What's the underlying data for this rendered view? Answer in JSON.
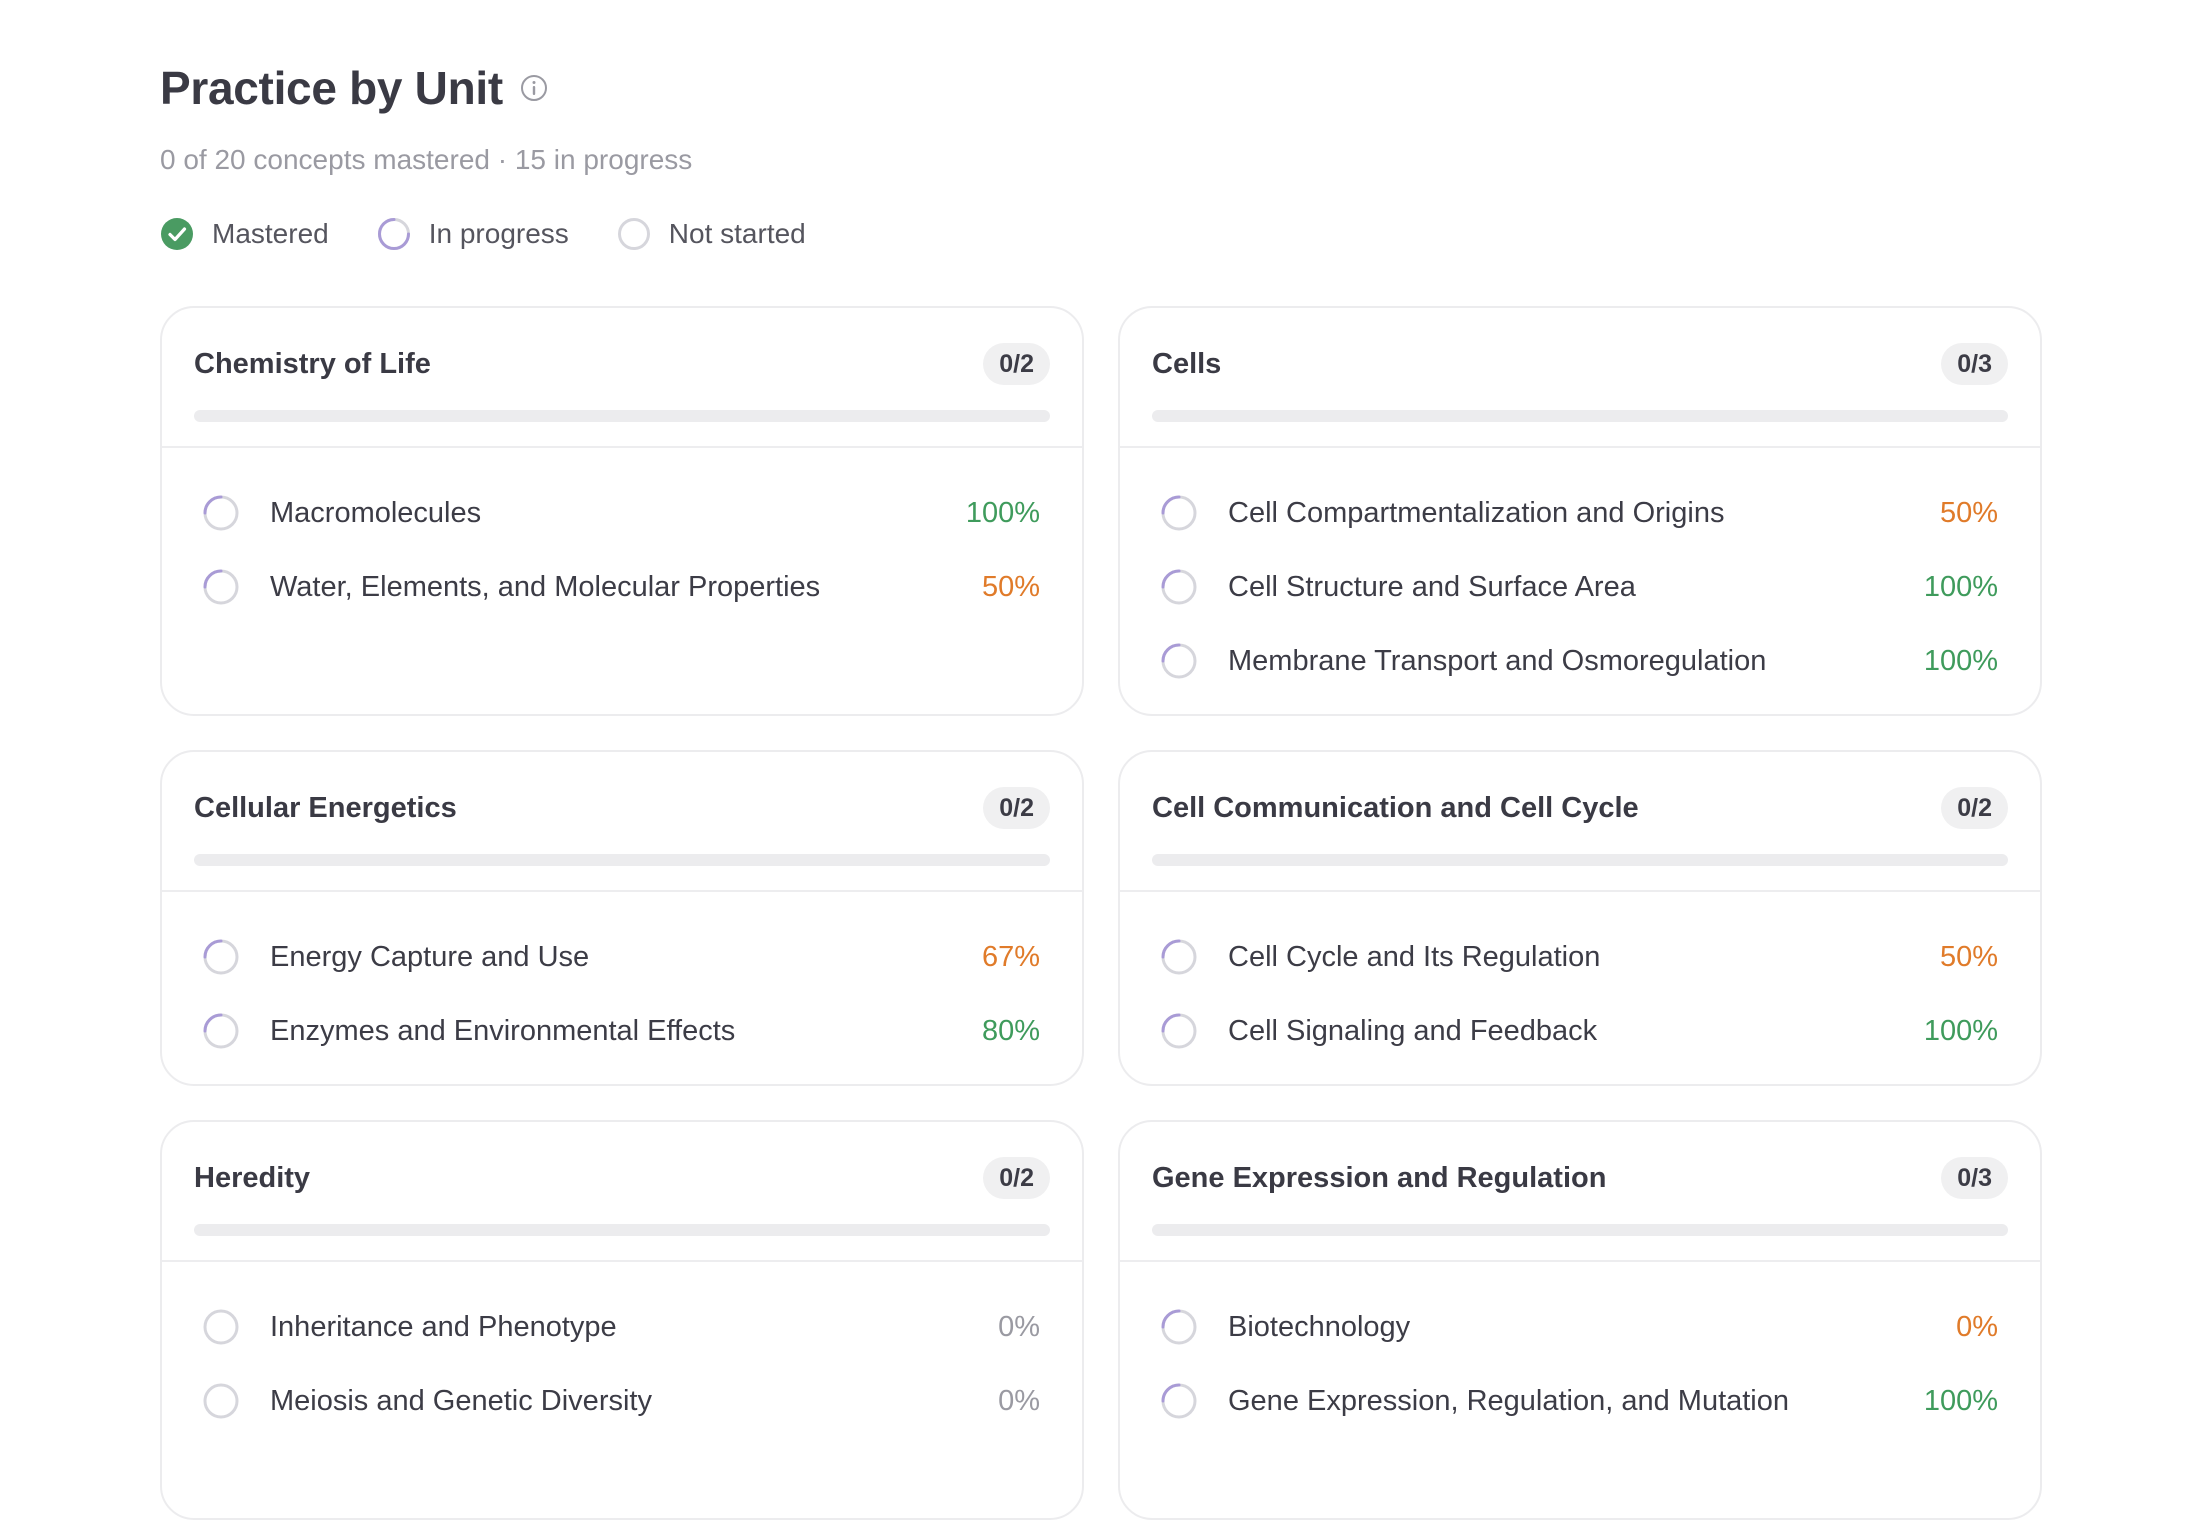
{
  "header": {
    "title": "Practice by Unit",
    "subtitle": "0 of 20 concepts mastered · 15 in progress"
  },
  "legend": {
    "mastered": "Mastered",
    "in_progress": "In progress",
    "not_started": "Not started"
  },
  "colors": {
    "mastered": "#4a9b62",
    "in_progress_ring": "#d6d6dc",
    "in_progress_arc": "#a99bd6",
    "pct_green": "#3f9b5c",
    "pct_orange": "#e07b2a",
    "pct_gray": "#9a9aa2"
  },
  "units": [
    {
      "title": "Chemistry of Life",
      "count": "0/2",
      "progress": 0,
      "concepts": [
        {
          "name": "Macromolecules",
          "pct": "100%",
          "pct_color": "green",
          "status": "in_progress"
        },
        {
          "name": "Water, Elements, and Molecular Properties",
          "pct": "50%",
          "pct_color": "orange",
          "status": "in_progress"
        }
      ]
    },
    {
      "title": "Cells",
      "count": "0/3",
      "progress": 0,
      "concepts": [
        {
          "name": "Cell Compartmentalization and Origins",
          "pct": "50%",
          "pct_color": "orange",
          "status": "in_progress"
        },
        {
          "name": "Cell Structure and Surface Area",
          "pct": "100%",
          "pct_color": "green",
          "status": "in_progress"
        },
        {
          "name": "Membrane Transport and Osmoregulation",
          "pct": "100%",
          "pct_color": "green",
          "status": "in_progress"
        }
      ]
    },
    {
      "title": "Cellular Energetics",
      "count": "0/2",
      "progress": 0,
      "concepts": [
        {
          "name": "Energy Capture and Use",
          "pct": "67%",
          "pct_color": "orange",
          "status": "in_progress"
        },
        {
          "name": "Enzymes and Environmental Effects",
          "pct": "80%",
          "pct_color": "green",
          "status": "in_progress"
        }
      ]
    },
    {
      "title": "Cell Communication and Cell Cycle",
      "count": "0/2",
      "progress": 0,
      "concepts": [
        {
          "name": "Cell Cycle and Its Regulation",
          "pct": "50%",
          "pct_color": "orange",
          "status": "in_progress"
        },
        {
          "name": "Cell Signaling and Feedback",
          "pct": "100%",
          "pct_color": "green",
          "status": "in_progress"
        }
      ]
    },
    {
      "title": "Heredity",
      "count": "0/2",
      "progress": 0,
      "concepts": [
        {
          "name": "Inheritance and Phenotype",
          "pct": "0%",
          "pct_color": "gray",
          "status": "not_started"
        },
        {
          "name": "Meiosis and Genetic Diversity",
          "pct": "0%",
          "pct_color": "gray",
          "status": "not_started"
        }
      ]
    },
    {
      "title": "Gene Expression and Regulation",
      "count": "0/3",
      "progress": 0,
      "concepts": [
        {
          "name": "Biotechnology",
          "pct": "0%",
          "pct_color": "orange",
          "status": "in_progress"
        },
        {
          "name": "Gene Expression, Regulation, and Mutation",
          "pct": "100%",
          "pct_color": "green",
          "status": "in_progress"
        }
      ]
    }
  ]
}
